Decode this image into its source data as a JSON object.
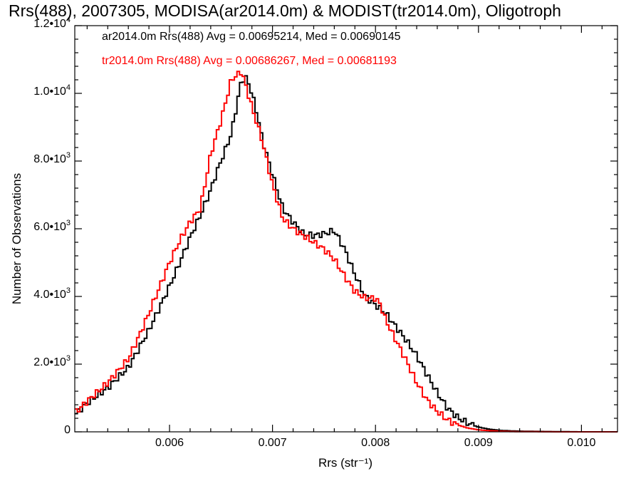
{
  "chart_data": {
    "type": "line",
    "title": "Rrs(488), 2007305, MODISA(ar2014.0m) & MODIST(tr2014.0m), Oligotroph",
    "xlabel": "Rrs (str⁻¹)",
    "ylabel": "Number of Observations",
    "xlim": [
      0.00508,
      0.01035
    ],
    "ylim": [
      0,
      12000
    ],
    "x_ticks": [
      "0.006",
      "0.007",
      "0.008",
      "0.009",
      "0.010"
    ],
    "y_ticks": [
      {
        "value": 0,
        "mantissa": "0",
        "exp": ""
      },
      {
        "value": 2000,
        "mantissa": "2.0•10",
        "exp": "3"
      },
      {
        "value": 4000,
        "mantissa": "4.0•10",
        "exp": "3"
      },
      {
        "value": 6000,
        "mantissa": "6.0•10",
        "exp": "3"
      },
      {
        "value": 8000,
        "mantissa": "8.0•10",
        "exp": "3"
      },
      {
        "value": 10000,
        "mantissa": "1.0•10",
        "exp": "4"
      },
      {
        "value": 12000,
        "mantissa": "1.2•10",
        "exp": "4"
      }
    ],
    "grid": false,
    "annotations": [
      "ar2014.0m Rrs(488) Avg = 0.00695214, Med = 0.00690145",
      "tr2014.0m Rrs(488) Avg = 0.00686267, Med = 0.00681193"
    ],
    "series": [
      {
        "color": "#000000",
        "x": [
          0.00508,
          0.0052,
          0.0054,
          0.0056,
          0.0057,
          0.0058,
          0.0059,
          0.006,
          0.0061,
          0.0062,
          0.0063,
          0.0064,
          0.00645,
          0.0065,
          0.00655,
          0.0066,
          0.00665,
          0.0067,
          0.00675,
          0.0068,
          0.00685,
          0.0069,
          0.007,
          0.0071,
          0.0072,
          0.0073,
          0.0074,
          0.0075,
          0.0076,
          0.0077,
          0.0078,
          0.0079,
          0.008,
          0.0081,
          0.0082,
          0.0083,
          0.0084,
          0.0085,
          0.0086,
          0.0087,
          0.0088,
          0.0089,
          0.009,
          0.0091,
          0.0092,
          0.0093,
          0.0094,
          0.0096,
          0.0098,
          0.01,
          0.01035
        ],
        "y": [
          500,
          850,
          1300,
          1900,
          2450,
          3000,
          3650,
          4300,
          5000,
          5750,
          6400,
          7150,
          7600,
          8000,
          8400,
          8800,
          9600,
          10400,
          10450,
          10000,
          9400,
          8650,
          7600,
          6600,
          6200,
          5850,
          5800,
          5850,
          5950,
          5400,
          4650,
          4000,
          3750,
          3500,
          3100,
          2700,
          2250,
          1700,
          1150,
          700,
          420,
          250,
          140,
          80,
          45,
          30,
          20,
          10,
          5,
          0,
          0
        ]
      },
      {
        "color": "#ff0000",
        "x": [
          0.00508,
          0.0052,
          0.0054,
          0.0056,
          0.0057,
          0.0058,
          0.0059,
          0.006,
          0.0061,
          0.0062,
          0.0063,
          0.0064,
          0.0065,
          0.0066,
          0.0067,
          0.0068,
          0.0069,
          0.007,
          0.0071,
          0.0072,
          0.0073,
          0.0074,
          0.0075,
          0.0076,
          0.0077,
          0.0078,
          0.0079,
          0.008,
          0.00805,
          0.0081,
          0.0082,
          0.0083,
          0.0084,
          0.0085,
          0.0086,
          0.0087,
          0.0088,
          0.0089,
          0.009,
          0.0091,
          0.0092,
          0.0093,
          0.0094,
          0.0096,
          0.0098,
          0.01035
        ],
        "y": [
          550,
          900,
          1450,
          2150,
          2800,
          3500,
          4250,
          5000,
          5650,
          6200,
          6600,
          8200,
          9200,
          10400,
          10650,
          9600,
          8600,
          7300,
          6300,
          6000,
          5800,
          5600,
          5400,
          5100,
          4600,
          4150,
          3950,
          3950,
          3750,
          3300,
          2700,
          2100,
          1450,
          950,
          600,
          350,
          200,
          110,
          60,
          35,
          20,
          10,
          5,
          3,
          0,
          0
        ]
      }
    ]
  }
}
